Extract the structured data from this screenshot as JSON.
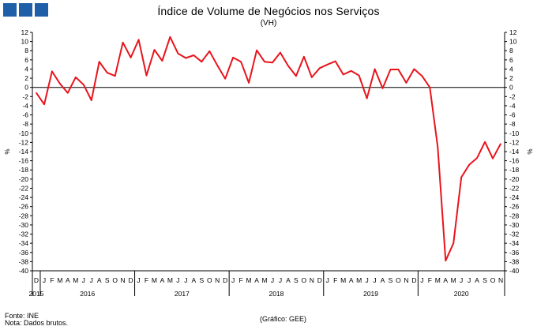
{
  "header": {
    "logo_color": "#1f5fa8"
  },
  "footer": {
    "source": "Fonte: INE",
    "note": "Nota: Dados brutos.",
    "credit": "(Gráfico: GEE)"
  },
  "chart_data": {
    "type": "line",
    "title": "Índice de Volume de Negócios nos Serviços",
    "subtitle": "(VH)",
    "ylabel_left": "%",
    "ylabel_right": "%",
    "ylim": [
      -40,
      12
    ],
    "yticks": [
      12,
      10,
      8,
      6,
      4,
      2,
      0,
      -2,
      -4,
      -6,
      -8,
      -10,
      -12,
      -14,
      -16,
      -18,
      -20,
      -22,
      -24,
      -26,
      -28,
      -30,
      -32,
      -34,
      -36,
      -38,
      -40
    ],
    "month_letters": [
      "D",
      "J",
      "F",
      "M",
      "A",
      "M",
      "J",
      "J",
      "A",
      "S",
      "O",
      "N",
      "D",
      "J",
      "F",
      "M",
      "A",
      "M",
      "J",
      "J",
      "A",
      "S",
      "O",
      "N",
      "D",
      "J",
      "F",
      "M",
      "A",
      "M",
      "J",
      "J",
      "A",
      "S",
      "O",
      "N",
      "D",
      "J",
      "F",
      "M",
      "A",
      "M",
      "J",
      "J",
      "A",
      "S",
      "O",
      "N",
      "D",
      "J",
      "F",
      "M",
      "A",
      "M",
      "J",
      "J",
      "A",
      "S",
      "O",
      "N"
    ],
    "years": [
      "2015",
      "2016",
      "2017",
      "2018",
      "2019",
      "2020"
    ],
    "series": [
      {
        "color": "#e8141c",
        "values": [
          -1.2,
          -3.7,
          3.5,
          0.8,
          -1.2,
          2.2,
          0.6,
          -2.8,
          5.6,
          3.2,
          2.5,
          9.8,
          6.5,
          10.4,
          2.6,
          8.2,
          5.8,
          11.0,
          7.4,
          6.4,
          7.0,
          5.6,
          7.9,
          4.8,
          1.9,
          6.5,
          5.6,
          1.0,
          8.1,
          5.6,
          5.4,
          7.6,
          4.7,
          2.5,
          6.7,
          2.2,
          4.2,
          5.0,
          5.7,
          2.8,
          3.6,
          2.6,
          -2.4,
          4.0,
          -0.2,
          3.9,
          3.9,
          1.0,
          4.0,
          2.5,
          0.0,
          -13.0,
          -37.8,
          -34.0,
          -19.6,
          -16.9,
          -15.4,
          -11.9,
          -15.5,
          -12.3
        ]
      }
    ],
    "grid": false,
    "zero_line": true
  }
}
